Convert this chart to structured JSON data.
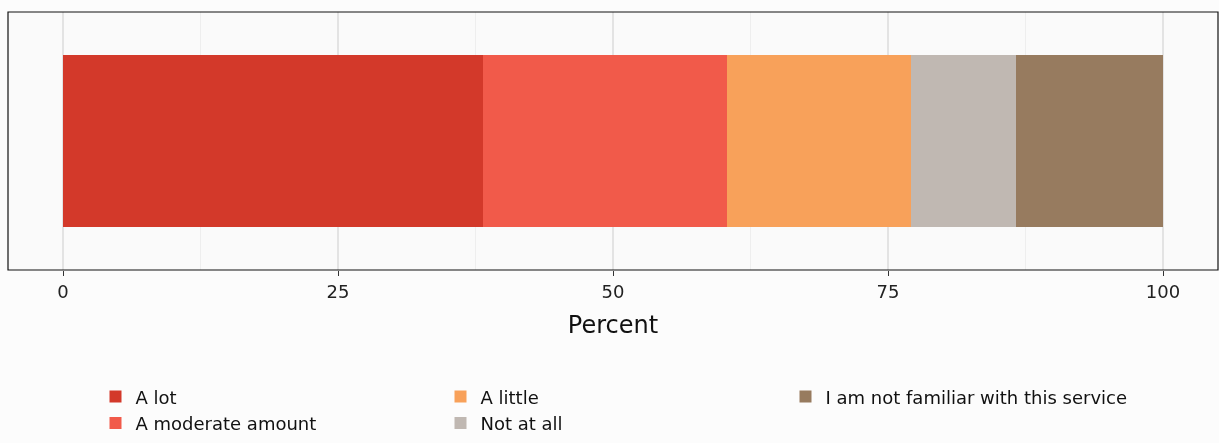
{
  "chart_data": {
    "type": "bar",
    "orientation": "horizontal",
    "stacked": true,
    "categories": [
      null
    ],
    "xlabel": "Percent",
    "xlim": [
      -5,
      105
    ],
    "xticks": [
      0,
      25,
      50,
      75,
      100
    ],
    "grid": "x",
    "tick_labels": "x",
    "legend": "bottom",
    "series": [
      {
        "name": "A lot",
        "color": "#d3392a",
        "values": [
          38.2
        ]
      },
      {
        "name": "A moderate amount",
        "color": "#f15a4a",
        "values": [
          22.2
        ]
      },
      {
        "name": "A little",
        "color": "#f8a15a",
        "values": [
          16.7
        ]
      },
      {
        "name": "Not at all",
        "color": "#c0b8b2",
        "values": [
          9.5
        ]
      },
      {
        "name": "I am not familiar with this service",
        "color": "#977b5f",
        "values": [
          13.4
        ]
      }
    ]
  }
}
